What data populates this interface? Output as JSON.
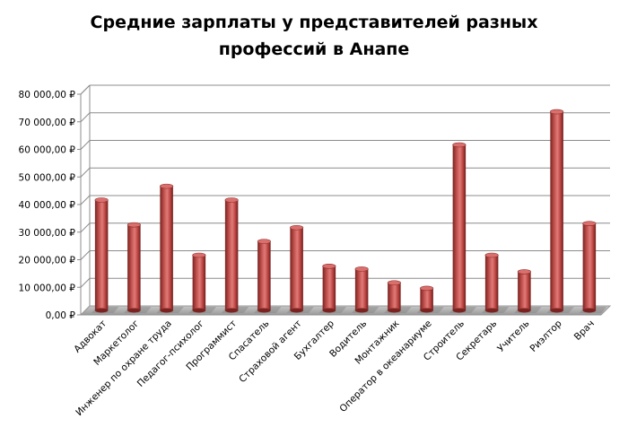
{
  "chart_data": {
    "type": "bar",
    "title": [
      "Средние зарплаты у представителей разных",
      "профессий в Анапе"
    ],
    "categories": [
      "Адвокат",
      "Маркетолог",
      "Инженер по охране труда",
      "Педагог-психолог",
      "Программист",
      "Спасатель",
      "Страховой агент",
      "Бухгалтер",
      "Водитель",
      "Монтажник",
      "Оператор в океанариуме",
      "Строитель",
      "Секретарь",
      "Учитель",
      "Риэлтор",
      "Врач"
    ],
    "values": [
      40000,
      31000,
      45000,
      20000,
      40000,
      25000,
      30000,
      16000,
      15000,
      10000,
      8000,
      60000,
      20000,
      14000,
      72000,
      31500
    ],
    "ylim": [
      0,
      80000
    ],
    "yticks": [
      0,
      10000,
      20000,
      30000,
      40000,
      50000,
      60000,
      70000,
      80000
    ],
    "ytick_labels": [
      "0,00 ₽",
      "10 000,00 ₽",
      "20 000,00 ₽",
      "30 000,00 ₽",
      "40 000,00 ₽",
      "50 000,00 ₽",
      "60 000,00 ₽",
      "70 000,00 ₽",
      "80 000,00 ₽"
    ],
    "grid": true,
    "bar_color": "#C0504D",
    "style": "3d-cylinder"
  }
}
